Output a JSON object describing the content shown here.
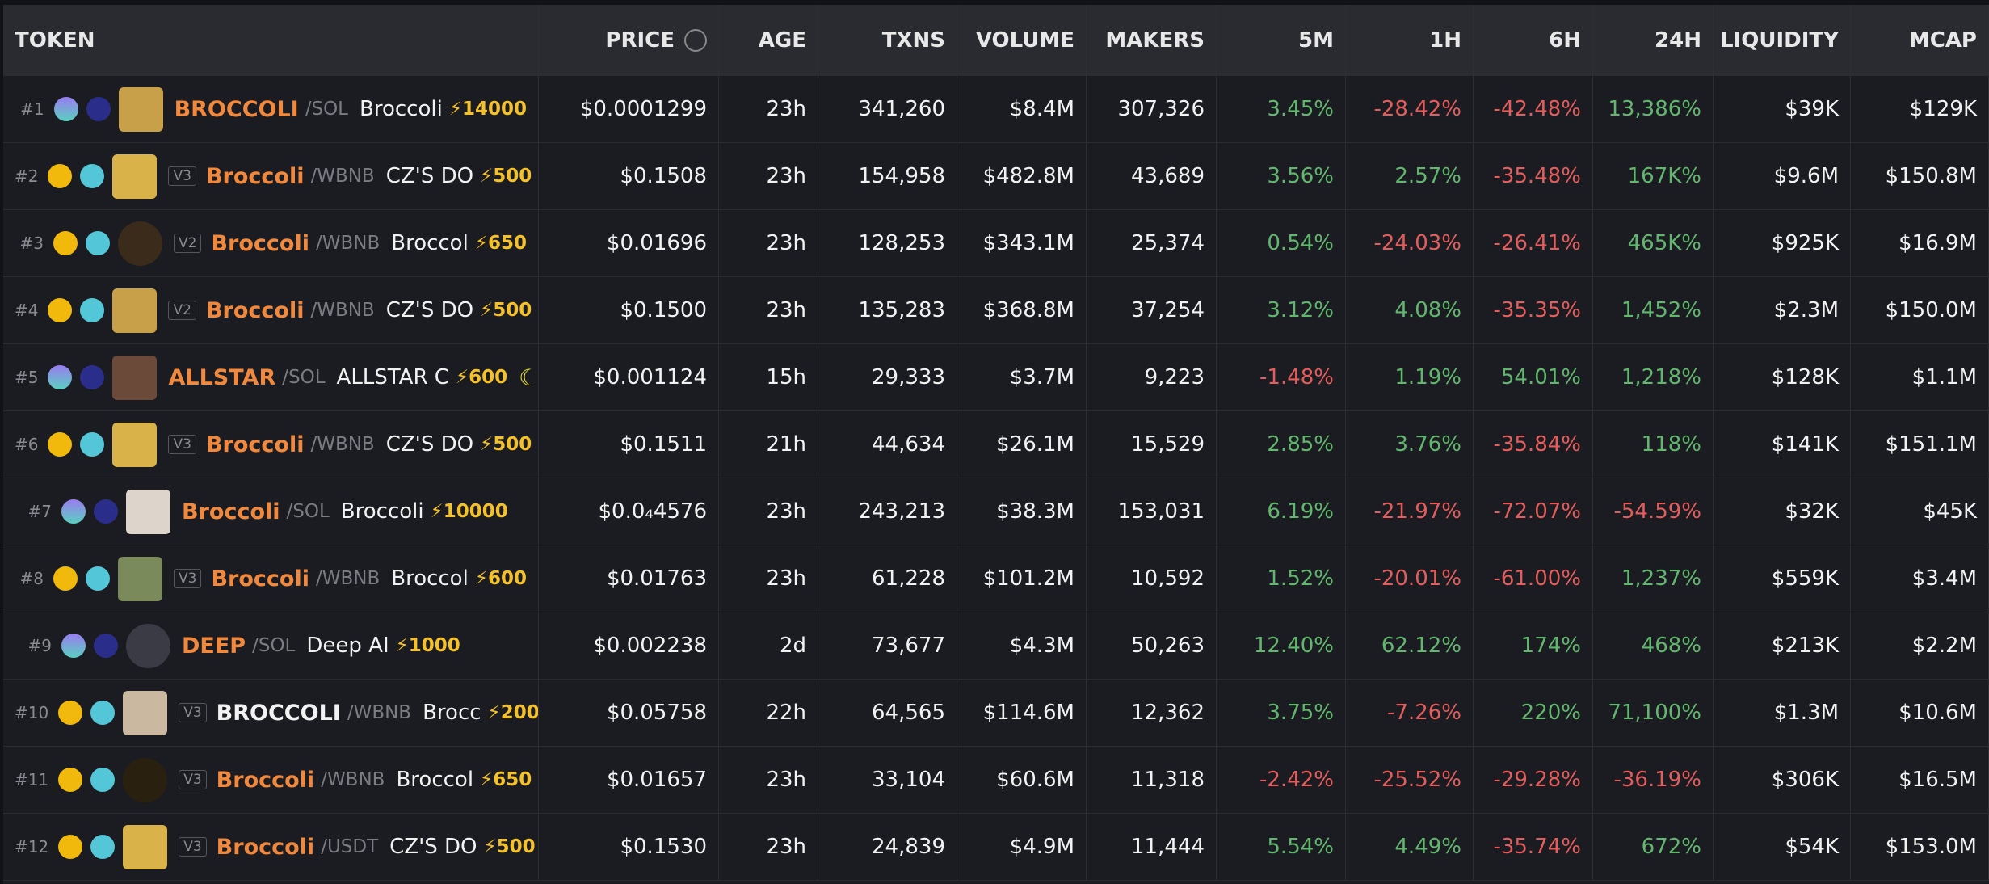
{
  "header": [
    "TOKEN",
    "PRICE",
    "AGE",
    "TXNS",
    "VOLUME",
    "MAKERS",
    "5M",
    "1H",
    "6H",
    "24H",
    "LIQUIDITY",
    "MCAP"
  ],
  "rows": [
    {
      "rank": "#1",
      "version": null,
      "symbol": "BROCCOLI",
      "quote": "SOL",
      "name": "Broccoli",
      "boost": 14000,
      "price": "$0.0001299",
      "age": "23h",
      "txns": "341,260",
      "volume": "$8.4M",
      "makers": "307,326",
      "m5": "3.45%",
      "h1": "-28.42%",
      "h6": "-42.48%",
      "h24": "13,386%",
      "liquidity": "$39K",
      "mcap": "$129K"
    },
    {
      "rank": "#2",
      "version": "V3",
      "symbol": "Broccoli",
      "quote": "WBNB",
      "name": "CZ'S DO",
      "boost": 500,
      "price": "$0.1508",
      "age": "23h",
      "txns": "154,958",
      "volume": "$482.8M",
      "makers": "43,689",
      "m5": "3.56%",
      "h1": "2.57%",
      "h6": "-35.48%",
      "h24": "167K%",
      "liquidity": "$9.6M",
      "mcap": "$150.8M"
    },
    {
      "rank": "#3",
      "version": "V2",
      "symbol": "Broccoli",
      "quote": "WBNB",
      "name": "Broccol",
      "boost": 650,
      "price": "$0.01696",
      "age": "23h",
      "txns": "128,253",
      "volume": "$343.1M",
      "makers": "25,374",
      "m5": "0.54%",
      "h1": "-24.03%",
      "h6": "-26.41%",
      "h24": "465K%",
      "liquidity": "$925K",
      "mcap": "$16.9M"
    },
    {
      "rank": "#4",
      "version": "V2",
      "symbol": "Broccoli",
      "quote": "WBNB",
      "name": "CZ'S DO",
      "boost": 500,
      "price": "$0.1500",
      "age": "23h",
      "txns": "135,283",
      "volume": "$368.8M",
      "makers": "37,254",
      "m5": "3.12%",
      "h1": "4.08%",
      "h6": "-35.35%",
      "h24": "1,452%",
      "liquidity": "$2.3M",
      "mcap": "$150.0M"
    },
    {
      "rank": "#5",
      "version": null,
      "symbol": "ALLSTAR",
      "quote": "SOL",
      "name": "ALLSTAR C",
      "boost": 600,
      "price": "$0.001124",
      "age": "15h",
      "txns": "29,333",
      "volume": "$3.7M",
      "makers": "9,223",
      "m5": "-1.48%",
      "h1": "1.19%",
      "h6": "54.01%",
      "h24": "1,218%",
      "liquidity": "$128K",
      "mcap": "$1.1M"
    },
    {
      "rank": "#6",
      "version": "V3",
      "symbol": "Broccoli",
      "quote": "WBNB",
      "name": "CZ'S DO",
      "boost": 500,
      "price": "$0.1511",
      "age": "21h",
      "txns": "44,634",
      "volume": "$26.1M",
      "makers": "15,529",
      "m5": "2.85%",
      "h1": "3.76%",
      "h6": "-35.84%",
      "h24": "118%",
      "liquidity": "$141K",
      "mcap": "$151.1M"
    },
    {
      "rank": "#7",
      "version": null,
      "symbol": "Broccoli",
      "quote": "SOL",
      "name": "Broccoli",
      "boost": 10000,
      "price": "$0.0₄4576",
      "age": "23h",
      "txns": "243,213",
      "volume": "$38.3M",
      "makers": "153,031",
      "m5": "6.19%",
      "h1": "-21.97%",
      "h6": "-72.07%",
      "h24": "-54.59%",
      "liquidity": "$32K",
      "mcap": "$45K"
    },
    {
      "rank": "#8",
      "version": "V3",
      "symbol": "Broccoli",
      "quote": "WBNB",
      "name": "Broccol",
      "boost": 600,
      "price": "$0.01763",
      "age": "23h",
      "txns": "61,228",
      "volume": "$101.2M",
      "makers": "10,592",
      "m5": "1.52%",
      "h1": "-20.01%",
      "h6": "-61.00%",
      "h24": "1,237%",
      "liquidity": "$559K",
      "mcap": "$3.4M"
    },
    {
      "rank": "#9",
      "version": null,
      "symbol": "DEEP",
      "quote": "SOL",
      "name": "Deep AI",
      "boost": 1000,
      "price": "$0.002238",
      "age": "2d",
      "txns": "73,677",
      "volume": "$4.3M",
      "makers": "50,263",
      "m5": "12.40%",
      "h1": "62.12%",
      "h6": "174%",
      "h24": "468%",
      "liquidity": "$213K",
      "mcap": "$2.2M"
    },
    {
      "rank": "#10",
      "version": "V3",
      "symbol": "BROCCOLI",
      "quote": "WBNB",
      "name": "Brocc",
      "boost": 200,
      "price": "$0.05758",
      "age": "22h",
      "txns": "64,565",
      "volume": "$114.6M",
      "makers": "12,362",
      "m5": "3.75%",
      "h1": "-7.26%",
      "h6": "220%",
      "h24": "71,100%",
      "liquidity": "$1.3M",
      "mcap": "$10.6M"
    },
    {
      "rank": "#11",
      "version": "V3",
      "symbol": "Broccoli",
      "quote": "WBNB",
      "name": "Broccol",
      "boost": 650,
      "price": "$0.01657",
      "age": "23h",
      "txns": "33,104",
      "volume": "$60.6M",
      "makers": "11,318",
      "m5": "-2.42%",
      "h1": "-25.52%",
      "h6": "-29.28%",
      "h24": "-36.19%",
      "liquidity": "$306K",
      "mcap": "$16.5M"
    },
    {
      "rank": "#12",
      "version": "V3",
      "symbol": "Broccoli",
      "quote": "USDT",
      "name": "CZ'S DO",
      "boost": 500,
      "price": "$0.1530",
      "age": "23h",
      "txns": "24,839",
      "volume": "$4.9M",
      "makers": "11,444",
      "m5": "5.54%",
      "h1": "4.49%",
      "h6": "-35.74%",
      "h24": "672%",
      "liquidity": "$54K",
      "mcap": "$153.0M"
    }
  ]
}
